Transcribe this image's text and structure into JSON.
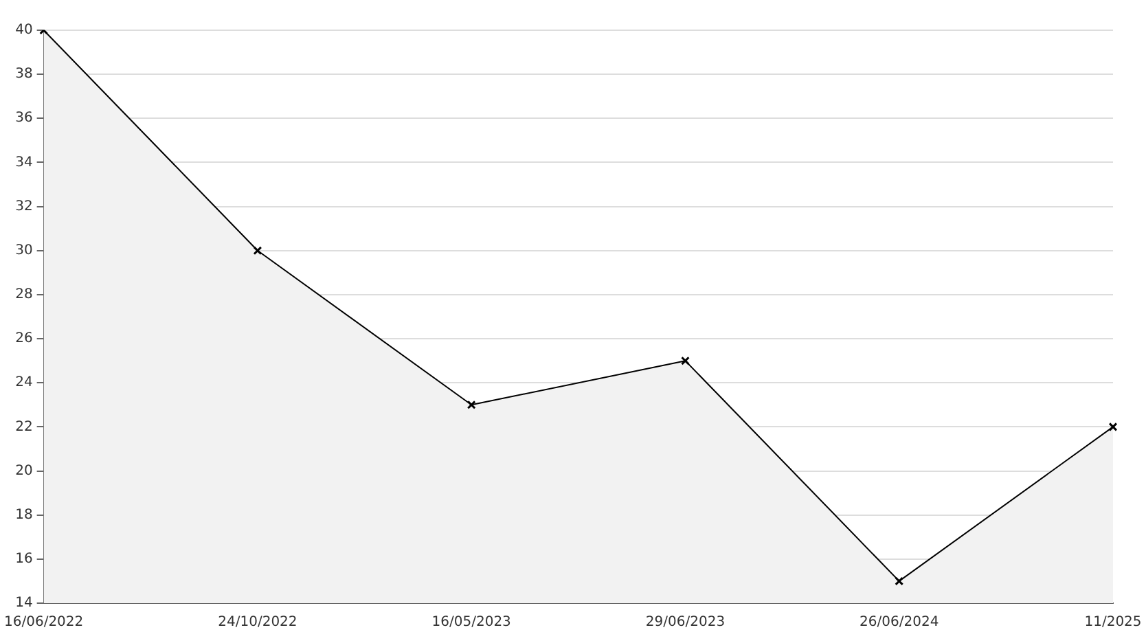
{
  "chart_data": {
    "type": "area",
    "categories": [
      "16/06/2022",
      "24/10/2022",
      "16/05/2023",
      "29/06/2023",
      "26/06/2024",
      "11/2025"
    ],
    "series": [
      {
        "color": "#000000",
        "values": [
          40,
          30,
          23,
          25,
          15,
          22
        ]
      }
    ],
    "ylim": [
      14,
      40
    ],
    "yticks": [
      14,
      16,
      18,
      20,
      22,
      24,
      26,
      28,
      30,
      32,
      34,
      36,
      38,
      40
    ],
    "grid": "y",
    "legend": false,
    "marker": "cross",
    "line_style": "solid"
  }
}
